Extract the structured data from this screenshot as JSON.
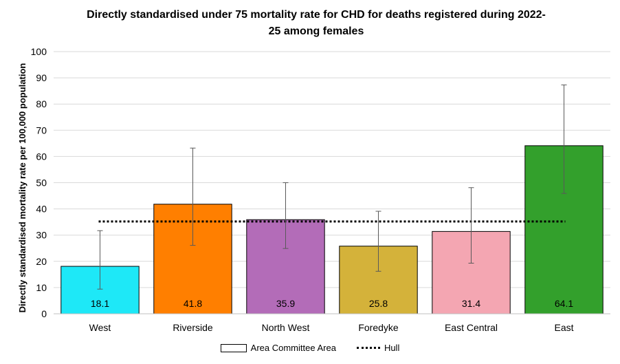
{
  "chart_data": {
    "type": "bar",
    "title_line1": "Directly standardised under 75 mortality rate for CHD for deaths registered during 2022-",
    "title_line2": "25 among females",
    "ylabel": "Directly standardised mortality rate per 100,000 population",
    "xlabel": "",
    "ylim": [
      0,
      100
    ],
    "yticks": [
      0,
      10,
      20,
      30,
      40,
      50,
      60,
      70,
      80,
      90,
      100
    ],
    "grid": true,
    "categories": [
      "West",
      "Riverside",
      "North West",
      "Foredyke",
      "East Central",
      "East"
    ],
    "values": [
      18.1,
      41.8,
      35.9,
      25.8,
      31.4,
      64.1
    ],
    "value_labels": [
      "18.1",
      "41.8",
      "35.9",
      "25.8",
      "31.4",
      "64.1"
    ],
    "ci_lower": [
      9.4,
      26.1,
      24.9,
      16.2,
      19.3,
      45.9
    ],
    "ci_upper": [
      31.7,
      63.2,
      50.0,
      39.1,
      48.1,
      87.3
    ],
    "colors": [
      "#1ee8f7",
      "#ff7f00",
      "#b36cb8",
      "#d4b23a",
      "#f4a6b2",
      "#33a02c"
    ],
    "reference_line": {
      "name": "Hull",
      "value": 35.2
    },
    "legend": {
      "position": "bottom",
      "bar_label": "Area Committee Area",
      "line_label": "Hull"
    }
  }
}
